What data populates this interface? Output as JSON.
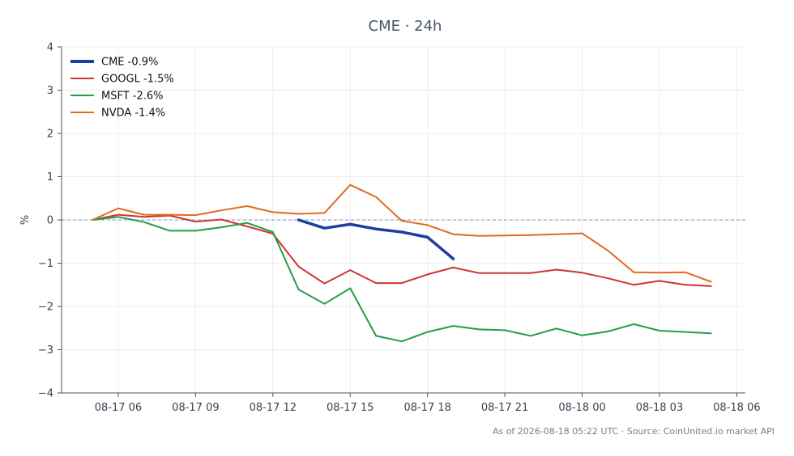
{
  "chart_data": {
    "type": "line",
    "title": "CME · 24h",
    "ylabel": "%",
    "xlabel": "",
    "ylim": [
      -4,
      4
    ],
    "yticks": [
      -4,
      -3,
      -2,
      -1,
      0,
      1,
      2,
      3,
      4
    ],
    "ytick_labels": [
      "−4",
      "−3",
      "−2",
      "−1",
      "0",
      "1",
      "2",
      "3",
      "4"
    ],
    "xlim": [
      "2026-08-17 03:48",
      "2026-08-18 06:20"
    ],
    "xticks": [
      "2026-08-17 06:00",
      "2026-08-17 09:00",
      "2026-08-17 12:00",
      "2026-08-17 15:00",
      "2026-08-17 18:00",
      "2026-08-17 21:00",
      "2026-08-18 00:00",
      "2026-08-18 03:00",
      "2026-08-18 06:00"
    ],
    "xtick_labels": [
      "08-17 06",
      "08-17 09",
      "08-17 12",
      "08-17 15",
      "08-17 18",
      "08-17 21",
      "08-18 00",
      "08-18 03",
      "08-18 06"
    ],
    "grid": true,
    "zero_line": true,
    "legend_position": "top-left",
    "series": [
      {
        "name": "CME -0.9%",
        "color": "#1f3fa0",
        "emphasis": true,
        "x": [
          "2026-08-17 13:00",
          "2026-08-17 14:00",
          "2026-08-17 15:00",
          "2026-08-17 16:00",
          "2026-08-17 17:00",
          "2026-08-17 18:00",
          "2026-08-17 19:00"
        ],
        "values": [
          0.0,
          -0.19,
          -0.1,
          -0.21,
          -0.28,
          -0.4,
          -0.9
        ]
      },
      {
        "name": "GOOGL -1.5%",
        "color": "#d03434",
        "x": [
          "2026-08-17 05:00",
          "2026-08-17 06:00",
          "2026-08-17 07:00",
          "2026-08-17 08:00",
          "2026-08-17 09:00",
          "2026-08-17 10:00",
          "2026-08-17 11:00",
          "2026-08-17 12:00",
          "2026-08-17 13:00",
          "2026-08-17 14:00",
          "2026-08-17 15:00",
          "2026-08-17 16:00",
          "2026-08-17 17:00",
          "2026-08-17 18:00",
          "2026-08-17 19:00",
          "2026-08-17 20:00",
          "2026-08-17 21:00",
          "2026-08-17 22:00",
          "2026-08-17 23:00",
          "2026-08-18 00:00",
          "2026-08-18 01:00",
          "2026-08-18 02:00",
          "2026-08-18 03:00",
          "2026-08-18 04:00",
          "2026-08-18 05:00"
        ],
        "values": [
          0.0,
          0.12,
          0.07,
          0.1,
          -0.04,
          0.01,
          -0.15,
          -0.32,
          -1.08,
          -1.47,
          -1.16,
          -1.46,
          -1.46,
          -1.26,
          -1.1,
          -1.23,
          -1.23,
          -1.23,
          -1.15,
          -1.22,
          -1.35,
          -1.5,
          -1.41,
          -1.5,
          -1.53
        ]
      },
      {
        "name": "MSFT -2.6%",
        "color": "#1f9e4a",
        "x": [
          "2026-08-17 05:00",
          "2026-08-17 06:00",
          "2026-08-17 07:00",
          "2026-08-17 08:00",
          "2026-08-17 09:00",
          "2026-08-17 10:00",
          "2026-08-17 11:00",
          "2026-08-17 12:00",
          "2026-08-17 13:00",
          "2026-08-17 14:00",
          "2026-08-17 15:00",
          "2026-08-17 16:00",
          "2026-08-17 17:00",
          "2026-08-17 18:00",
          "2026-08-17 19:00",
          "2026-08-17 20:00",
          "2026-08-17 21:00",
          "2026-08-17 22:00",
          "2026-08-17 23:00",
          "2026-08-18 00:00",
          "2026-08-18 01:00",
          "2026-08-18 02:00",
          "2026-08-18 03:00",
          "2026-08-18 04:00",
          "2026-08-18 05:00"
        ],
        "values": [
          0.0,
          0.07,
          -0.05,
          -0.25,
          -0.25,
          -0.17,
          -0.07,
          -0.28,
          -1.61,
          -1.94,
          -1.58,
          -2.68,
          -2.81,
          -2.59,
          -2.45,
          -2.53,
          -2.55,
          -2.68,
          -2.51,
          -2.67,
          -2.58,
          -2.41,
          -2.56,
          -2.59,
          -2.62
        ]
      },
      {
        "name": "NVDA -1.4%",
        "color": "#e06b1f",
        "x": [
          "2026-08-17 05:00",
          "2026-08-17 06:00",
          "2026-08-17 07:00",
          "2026-08-17 08:00",
          "2026-08-17 09:00",
          "2026-08-17 10:00",
          "2026-08-17 11:00",
          "2026-08-17 12:00",
          "2026-08-17 13:00",
          "2026-08-17 14:00",
          "2026-08-17 15:00",
          "2026-08-17 16:00",
          "2026-08-17 17:00",
          "2026-08-17 18:00",
          "2026-08-17 19:00",
          "2026-08-17 20:00",
          "2026-08-17 21:00",
          "2026-08-17 22:00",
          "2026-08-17 23:00",
          "2026-08-18 00:00",
          "2026-08-18 01:00",
          "2026-08-18 02:00",
          "2026-08-18 03:00",
          "2026-08-18 04:00",
          "2026-08-18 05:00"
        ],
        "values": [
          0.0,
          0.27,
          0.12,
          0.12,
          0.11,
          0.22,
          0.32,
          0.18,
          0.14,
          0.16,
          0.81,
          0.53,
          -0.02,
          -0.12,
          -0.33,
          -0.37,
          -0.36,
          -0.35,
          -0.33,
          -0.31,
          -0.71,
          -1.21,
          -1.22,
          -1.21,
          -1.43
        ]
      }
    ]
  },
  "footer": "As of 2026-08-18 05:22 UTC · Source: CoinUnited.io market API"
}
